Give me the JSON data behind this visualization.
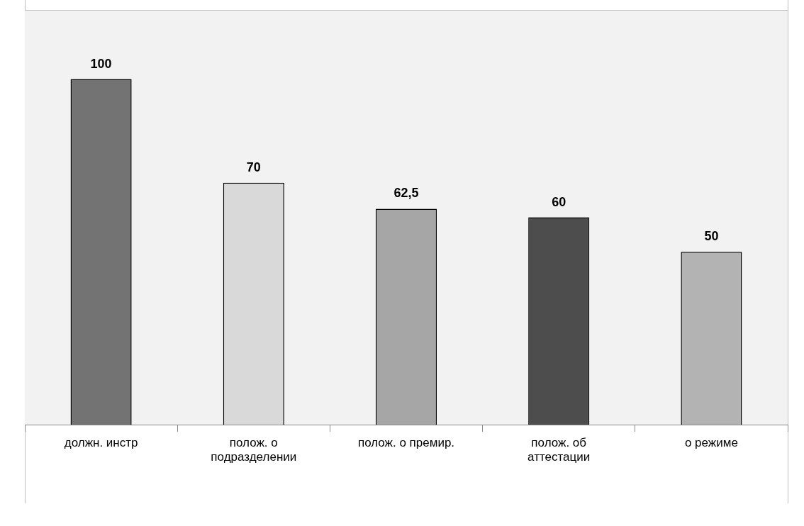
{
  "chart_data": {
    "type": "bar",
    "categories": [
      "должн. инстр",
      "полож. о подразделении",
      "полож. о премир.",
      "полож. об аттестации",
      "о режиме"
    ],
    "values": [
      100,
      70,
      62.5,
      60,
      50
    ],
    "colors": [
      "#737373",
      "#d9d9d9",
      "#a6a6a6",
      "#4d4d4d",
      "#b3b3b3"
    ],
    "value_labels": [
      "100",
      "70",
      "62,5",
      "60",
      "50"
    ],
    "grid": false,
    "legend": false
  }
}
